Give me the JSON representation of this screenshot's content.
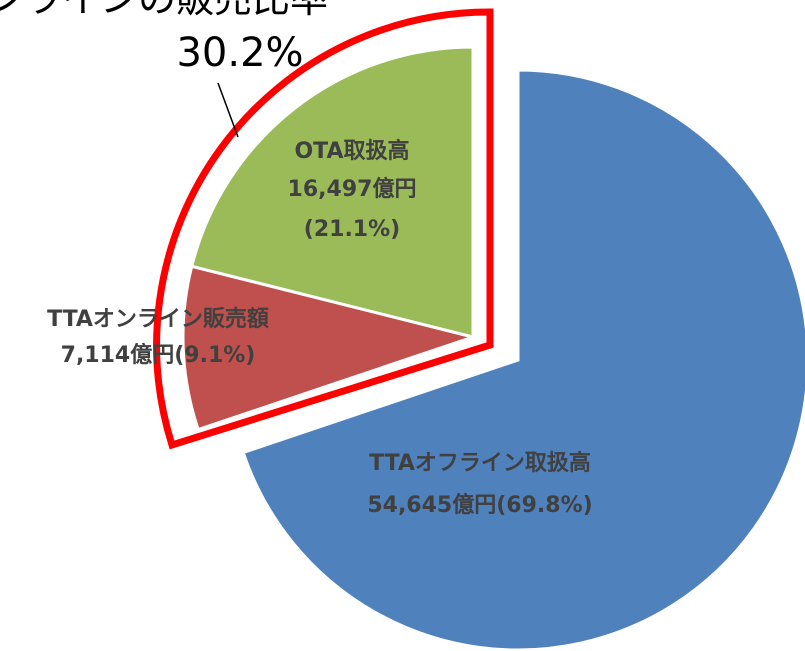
{
  "chart_data": {
    "type": "pie",
    "title": "オンラインの販売比率",
    "annotation": "30.2%",
    "categories": [
      "TTAオフライン取扱高",
      "TTAオンライン販売額",
      "OTA取扱高"
    ],
    "values": [
      54645,
      7114,
      16497
    ],
    "value_labels": [
      "54,645億円",
      "7,114億円",
      "16,497億円"
    ],
    "percents": [
      69.8,
      9.1,
      21.1
    ],
    "percent_labels": [
      "(69.8%)",
      "(9.1%)",
      "(21.1%)"
    ],
    "colors": [
      "#4f81bd",
      "#c0504d",
      "#9bbb59"
    ],
    "exploded": [
      false,
      true,
      true
    ]
  }
}
